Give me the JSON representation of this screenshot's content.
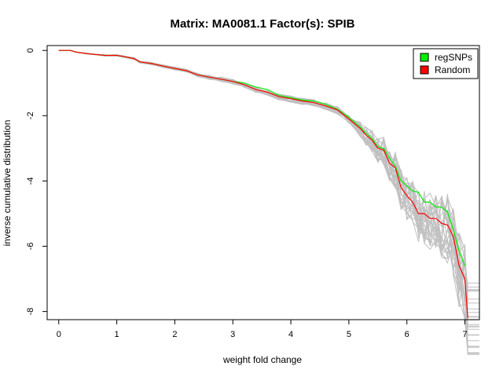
{
  "chart_data": {
    "type": "line",
    "title": "Matrix: MA0081.1 Factor(s): SPIB",
    "xlabel": "weight fold change",
    "ylabel": "inverse cumulative distribution",
    "xlim": [
      -0.2,
      7.25
    ],
    "ylim": [
      -8.25,
      0.15
    ],
    "x_ticks": [
      "0",
      "1",
      "2",
      "3",
      "4",
      "5",
      "6",
      "7"
    ],
    "y_ticks": [
      "0",
      "-2",
      "-4",
      "-6",
      "-8"
    ],
    "grid": false,
    "legend": {
      "position": "top-right",
      "entries": [
        "regSNPs",
        "Random"
      ]
    },
    "colors": {
      "regSNPs": "#00ee00",
      "Random": "#ff0000",
      "background_runs": "#c0c0c0"
    },
    "series": [
      {
        "name": "regSNPs",
        "x": [
          0,
          0.2,
          0.3,
          0.5,
          0.8,
          1.0,
          1.1,
          1.3,
          1.4,
          1.6,
          1.8,
          2.0,
          2.2,
          2.4,
          2.6,
          2.8,
          3.0,
          3.2,
          3.4,
          3.6,
          3.8,
          4.0,
          4.2,
          4.4,
          4.6,
          4.8,
          5.0,
          5.2,
          5.3,
          5.4,
          5.5,
          5.6,
          5.7,
          5.8,
          5.9,
          6.0,
          6.1,
          6.2,
          6.3,
          6.4,
          6.5,
          6.6,
          6.7,
          6.8,
          6.9,
          7.0
        ],
        "y": [
          0,
          0,
          -0.05,
          -0.1,
          -0.15,
          -0.15,
          -0.18,
          -0.25,
          -0.35,
          -0.4,
          -0.48,
          -0.55,
          -0.62,
          -0.75,
          -0.82,
          -0.88,
          -0.95,
          -1.0,
          -1.12,
          -1.2,
          -1.38,
          -1.45,
          -1.52,
          -1.55,
          -1.65,
          -1.8,
          -2.05,
          -2.35,
          -2.55,
          -2.7,
          -2.95,
          -3.0,
          -3.3,
          -3.55,
          -4.0,
          -4.15,
          -4.3,
          -4.35,
          -4.65,
          -4.65,
          -4.8,
          -4.8,
          -4.95,
          -5.5,
          -6.15,
          -6.6
        ]
      },
      {
        "name": "Random",
        "x": [
          0,
          0.2,
          0.3,
          0.5,
          0.8,
          1.0,
          1.1,
          1.3,
          1.4,
          1.6,
          1.8,
          2.0,
          2.2,
          2.4,
          2.6,
          2.8,
          3.0,
          3.2,
          3.4,
          3.6,
          3.8,
          4.0,
          4.2,
          4.4,
          4.6,
          4.8,
          5.0,
          5.2,
          5.3,
          5.4,
          5.5,
          5.6,
          5.7,
          5.8,
          5.9,
          6.0,
          6.1,
          6.2,
          6.3,
          6.4,
          6.5,
          6.6,
          6.7,
          6.8,
          6.9,
          7.0,
          7.05
        ],
        "y": [
          0,
          0,
          -0.05,
          -0.1,
          -0.15,
          -0.15,
          -0.18,
          -0.25,
          -0.35,
          -0.4,
          -0.48,
          -0.55,
          -0.62,
          -0.75,
          -0.82,
          -0.88,
          -0.95,
          -1.05,
          -1.2,
          -1.28,
          -1.42,
          -1.48,
          -1.55,
          -1.6,
          -1.7,
          -1.82,
          -2.1,
          -2.4,
          -2.6,
          -2.75,
          -3.0,
          -3.05,
          -3.45,
          -3.6,
          -4.2,
          -4.45,
          -4.65,
          -5.0,
          -5.0,
          -5.15,
          -5.15,
          -5.3,
          -5.35,
          -5.7,
          -6.6,
          -7.0,
          -8.2
        ]
      }
    ]
  }
}
